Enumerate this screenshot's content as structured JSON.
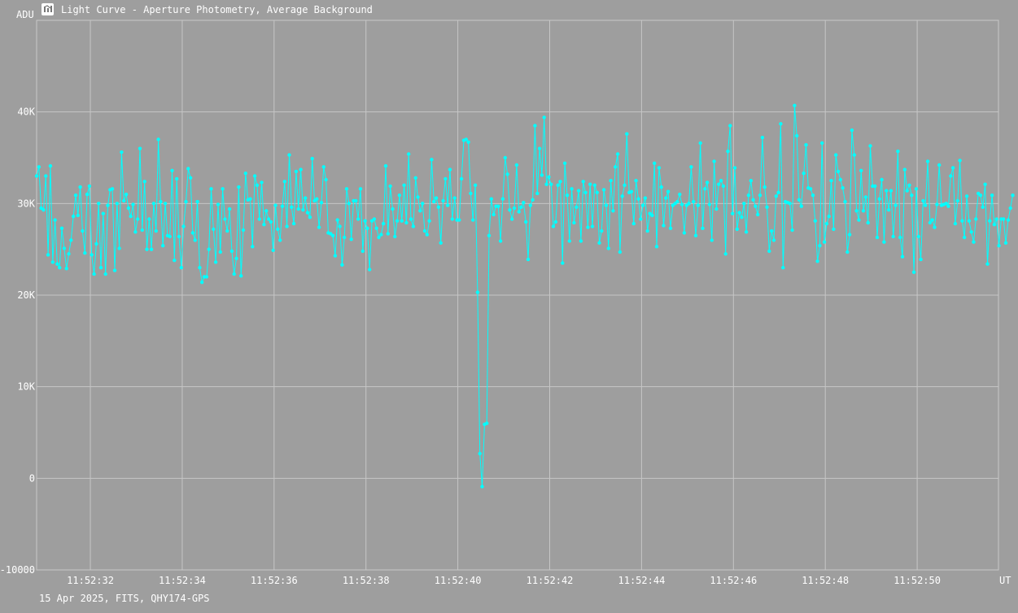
{
  "window": {
    "title": "Light Curve - Aperture Photometry, Average Background",
    "icon": "light-curve-app-icon"
  },
  "footer": {
    "caption": "15 Apr 2025, FITS, QHY174-GPS"
  },
  "chart_data": {
    "type": "line",
    "title": "Light Curve - Aperture Photometry, Average Background",
    "ylabel": "ADU",
    "xlabel": "UT",
    "ylim": [
      -10000,
      50000
    ],
    "xlim": [
      "11:52:30.83",
      "11:52:51.77"
    ],
    "yticks": [
      {
        "value": -10000,
        "label": "-10000"
      },
      {
        "value": 0,
        "label": "0"
      },
      {
        "value": 10000,
        "label": "10K"
      },
      {
        "value": 20000,
        "label": "20K"
      },
      {
        "value": 30000,
        "label": "30K"
      },
      {
        "value": 40000,
        "label": "40K"
      }
    ],
    "xticks": [
      "11:52:32",
      "11:52:34",
      "11:52:36",
      "11:52:38",
      "11:52:40",
      "11:52:42",
      "11:52:44",
      "11:52:46",
      "11:52:48",
      "11:52:50"
    ],
    "grid": true,
    "series_color": "#00ffff",
    "sample_interval_s": 0.05,
    "series": [
      {
        "start": "11:52:30.83",
        "values": [
          33000,
          34000,
          29500,
          29300,
          33000,
          24400,
          34100,
          23600,
          28200,
          23400,
          23000,
          27300,
          25100,
          22900,
          24500,
          26000,
          28600,
          30900,
          28700,
          31800,
          27000,
          24600,
          31000,
          31900,
          24400,
          22300,
          25600,
          30000,
          23000,
          28900,
          22300,
          29800,
          31500,
          31600,
          22700,
          30000,
          25100,
          35600,
          30300,
          31000,
          29500,
          28600,
          29900,
          26900,
          28300,
          36000,
          27100,
          32400,
          25000,
          28300,
          25000,
          30000,
          27000,
          37000,
          30200,
          25400,
          30000,
          26500,
          26400,
          33600,
          23800,
          32700,
          26400,
          23000,
          27500,
          30200,
          33800,
          32800,
          26800,
          26000,
          30200,
          23000,
          21400,
          22000,
          22000,
          25000,
          31600,
          27200,
          23600,
          29900,
          24700,
          31600,
          28300,
          27000,
          29400,
          24800,
          22300,
          24000,
          31800,
          22100,
          27100,
          33300,
          30400,
          30500,
          25300,
          33000,
          32000,
          28300,
          32300,
          27700,
          29200,
          28300,
          28000,
          24900,
          29800,
          27200,
          26000,
          29700,
          32400,
          27500,
          35300,
          29600,
          27800,
          33500,
          29400,
          33700,
          29300,
          30600,
          29000,
          28500,
          34900,
          30300,
          30500,
          27400,
          30100,
          34000,
          32600,
          26800,
          26700,
          26500,
          24300,
          28200,
          27500,
          23300,
          26300,
          31600,
          30000,
          26100,
          30300,
          30300,
          28300,
          31600,
          24800,
          28100,
          27300,
          22800,
          28100,
          28300,
          27300,
          26300,
          26600,
          27800,
          34100,
          26700,
          31900,
          29400,
          26400,
          28100,
          30900,
          28100,
          32000,
          27900,
          35400,
          28300,
          27500,
          32800,
          30700,
          29200,
          30000,
          27000,
          26600,
          28100,
          34800,
          30200,
          30600,
          29600,
          25700,
          30300,
          32700,
          29800,
          33700,
          28300,
          30600,
          28200,
          28200,
          32700,
          36900,
          37000,
          36700,
          31100,
          28200,
          32000,
          20300,
          2700,
          -900,
          5900,
          6000,
          26500,
          30500,
          28800,
          29700,
          29700,
          25900,
          30500,
          35000,
          33200,
          29300,
          28300,
          29500,
          34200,
          29100,
          29600,
          30100,
          28000,
          23900,
          29800,
          30400,
          38500,
          31100,
          36000,
          33100,
          39400,
          32100,
          32900,
          32100,
          27500,
          28000,
          32000,
          32400,
          23500,
          34400,
          30900,
          25900,
          31600,
          27900,
          29600,
          31400,
          25900,
          32400,
          31200,
          27400,
          32100,
          27500,
          32000,
          31200,
          25700,
          27000,
          31500,
          29800,
          25100,
          32500,
          29200,
          34000,
          35400,
          24700,
          30800,
          32000,
          37600,
          31200,
          31300,
          27800,
          32500,
          30500,
          28300,
          29800,
          30600,
          27000,
          28900,
          28700,
          34400,
          25300,
          33900,
          31800,
          27600,
          30600,
          31300,
          27300,
          29800,
          30000,
          30200,
          31000,
          29900,
          26800,
          29800,
          30000,
          34000,
          30200,
          26500,
          29800,
          36600,
          27300,
          31600,
          32300,
          29900,
          26000,
          34600,
          29400,
          32100,
          32500,
          31900,
          24500,
          35700,
          38500,
          28900,
          33900,
          27200,
          29000,
          28500,
          30000,
          26900,
          30900,
          32500,
          30400,
          29700,
          28800,
          30900,
          37200,
          31800,
          29600,
          24800,
          27000,
          26000,
          30800,
          31200,
          38700,
          23000,
          30200,
          30100,
          30000,
          27100,
          40700,
          37400,
          30400,
          29700,
          33300,
          36400,
          31700,
          31600,
          30900,
          28100,
          23700,
          25400,
          36600,
          25800,
          27800,
          28600,
          32500,
          27200,
          35300,
          33500,
          32600,
          31700,
          30200,
          24700,
          26600,
          38000,
          35300,
          29200,
          28200,
          33600,
          29200,
          30700,
          27900,
          36300,
          31900,
          31900,
          26300,
          30500,
          32600,
          25800,
          31400,
          29300,
          31400,
          26400,
          29800,
          35700,
          26300,
          24200,
          33700,
          31400,
          32000,
          30900,
          22500,
          31600,
          26400,
          23900,
          30300,
          29800,
          34600,
          27900,
          28200,
          27400,
          29900,
          34200,
          29800,
          29900,
          30000,
          29700,
          33000,
          33900,
          27800,
          30300,
          34700,
          28100,
          26300,
          30800,
          28100,
          26900,
          25800,
          28300,
          31100,
          30900,
          29600,
          32100,
          23400,
          28100,
          30900,
          27700,
          28300,
          25400,
          28300,
          28300,
          25700,
          28200,
          29500,
          30900
        ]
      }
    ]
  }
}
